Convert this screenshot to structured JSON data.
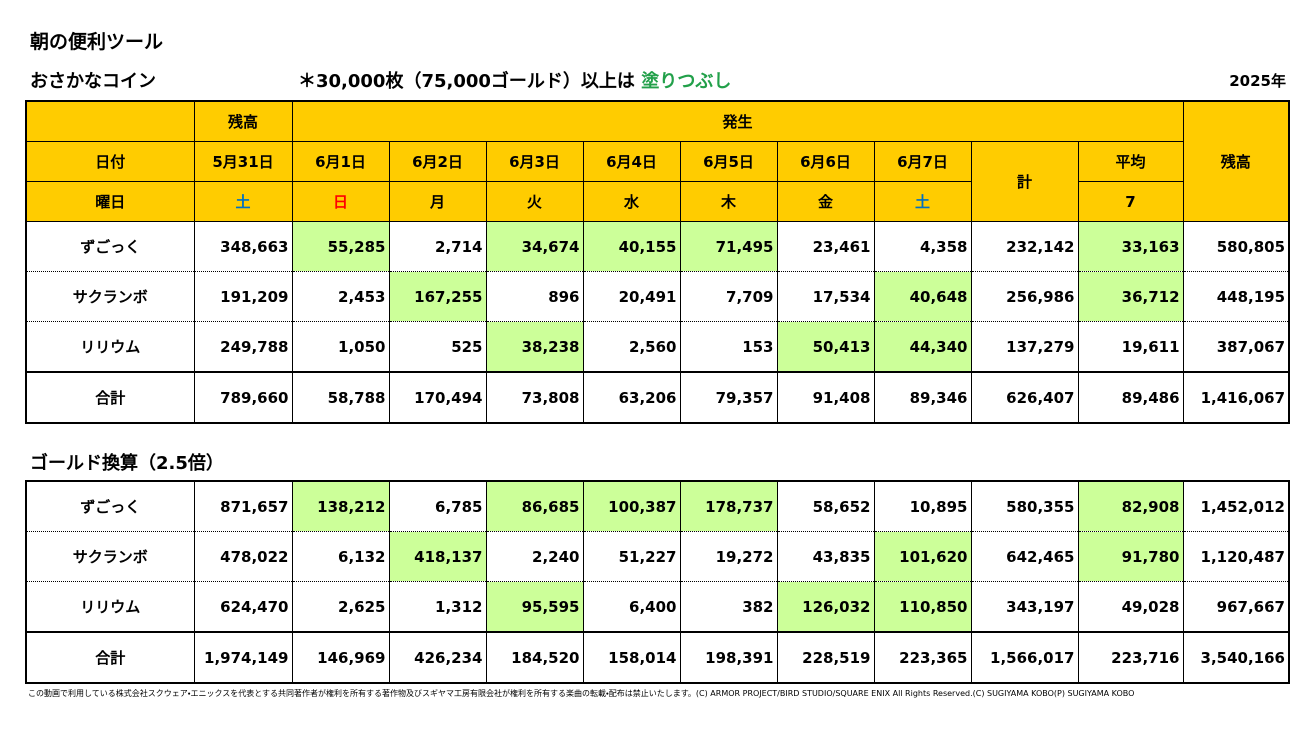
{
  "header": {
    "title": "朝の便利ツール",
    "subtitle": "おさかなコイン",
    "note": "＊30,000枚（75,000ゴールド）以上は",
    "note_highlight": "塗りつぶし",
    "note_highlight_color": "#22a04a",
    "year": "2025年"
  },
  "colors": {
    "header_fill": "#ffcc00",
    "highlight_fill": "#ccff99"
  },
  "coin_table": {
    "header_balance": "残高",
    "header_occurrence": "発生",
    "header_balance_end": "残高",
    "date_label": "日付",
    "dates": [
      "5月31日",
      "6月1日",
      "6月2日",
      "6月3日",
      "6月4日",
      "6月5日",
      "6月6日",
      "6月7日"
    ],
    "total_label": "計",
    "average_label": "平均",
    "weekday_label": "曜日",
    "weekdays": [
      "土",
      "日",
      "月",
      "火",
      "水",
      "木",
      "金",
      "土"
    ],
    "weekday_colors": [
      "#0070c0",
      "#ff0000",
      "#000000",
      "#000000",
      "#000000",
      "#000000",
      "#000000",
      "#0070c0"
    ],
    "average_days": "7",
    "rows": [
      {
        "label": "ずごっく",
        "cells": [
          "348,663",
          "55,285",
          "2,714",
          "34,674",
          "40,155",
          "71,495",
          "23,461",
          "4,358",
          "232,142",
          "33,163",
          "580,805"
        ],
        "highlighted": [
          false,
          true,
          false,
          true,
          true,
          true,
          false,
          false,
          false,
          true,
          false
        ]
      },
      {
        "label": "サクランボ",
        "cells": [
          "191,209",
          "2,453",
          "167,255",
          "896",
          "20,491",
          "7,709",
          "17,534",
          "40,648",
          "256,986",
          "36,712",
          "448,195"
        ],
        "highlighted": [
          false,
          false,
          true,
          false,
          false,
          false,
          false,
          true,
          false,
          true,
          false
        ]
      },
      {
        "label": "リリウム",
        "cells": [
          "249,788",
          "1,050",
          "525",
          "38,238",
          "2,560",
          "153",
          "50,413",
          "44,340",
          "137,279",
          "19,611",
          "387,067"
        ],
        "highlighted": [
          false,
          false,
          false,
          true,
          false,
          false,
          true,
          true,
          false,
          false,
          false
        ]
      },
      {
        "label": "合計",
        "cells": [
          "789,660",
          "58,788",
          "170,494",
          "73,808",
          "63,206",
          "79,357",
          "91,408",
          "89,346",
          "626,407",
          "89,486",
          "1,416,067"
        ],
        "highlighted": [
          false,
          false,
          false,
          false,
          false,
          false,
          false,
          false,
          false,
          false,
          false
        ]
      }
    ]
  },
  "gold_section": {
    "title": "ゴールド換算（2.5倍）",
    "rows": [
      {
        "label": "ずごっく",
        "cells": [
          "871,657",
          "138,212",
          "6,785",
          "86,685",
          "100,387",
          "178,737",
          "58,652",
          "10,895",
          "580,355",
          "82,908",
          "1,452,012"
        ],
        "highlighted": [
          false,
          true,
          false,
          true,
          true,
          true,
          false,
          false,
          false,
          true,
          false
        ]
      },
      {
        "label": "サクランボ",
        "cells": [
          "478,022",
          "6,132",
          "418,137",
          "2,240",
          "51,227",
          "19,272",
          "43,835",
          "101,620",
          "642,465",
          "91,780",
          "1,120,487"
        ],
        "highlighted": [
          false,
          false,
          true,
          false,
          false,
          false,
          false,
          true,
          false,
          true,
          false
        ]
      },
      {
        "label": "リリウム",
        "cells": [
          "624,470",
          "2,625",
          "1,312",
          "95,595",
          "6,400",
          "382",
          "126,032",
          "110,850",
          "343,197",
          "49,028",
          "967,667"
        ],
        "highlighted": [
          false,
          false,
          false,
          true,
          false,
          false,
          true,
          true,
          false,
          false,
          false
        ]
      },
      {
        "label": "合計",
        "cells": [
          "1,974,149",
          "146,969",
          "426,234",
          "184,520",
          "158,014",
          "198,391",
          "228,519",
          "223,365",
          "1,566,017",
          "223,716",
          "3,540,166"
        ],
        "highlighted": [
          false,
          false,
          false,
          false,
          false,
          false,
          false,
          false,
          false,
          false,
          false
        ]
      }
    ]
  },
  "footer": "この動画で利用している株式会社スクウェア・エニックスを代表とする共同著作者が権利を所有する著作物及びスギヤマ工房有限会社が権利を所有する楽曲の転載・配布は禁止いたします。(C) ARMOR PROJECT/BIRD STUDIO/SQUARE ENIX All Rights Reserved.(C) SUGIYAMA KOBO(P) SUGIYAMA KOBO"
}
